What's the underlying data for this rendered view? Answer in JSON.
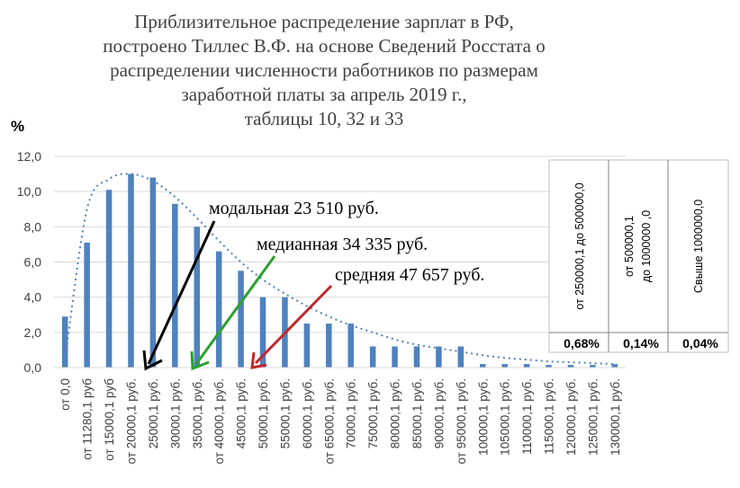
{
  "chart_data": {
    "type": "bar",
    "title": [
      "Приблизительное распределение зарплат в РФ,",
      "построено Тиллес В.Ф. на основе Сведений Росстата о",
      "распределении численности работников по размерам",
      "заработной платы за апрель 2019 г.,",
      "таблицы 10, 32 и 33"
    ],
    "ylabel": "%",
    "ylim": [
      0,
      12
    ],
    "yticks": [
      "0,0",
      "2,0",
      "4,0",
      "6,0",
      "8,0",
      "10,0",
      "12,0"
    ],
    "categories": [
      "от 0,0",
      "от 11280,1 руб",
      "от 15000,1 руб",
      "от 20000,1 руб.",
      "25000,1 руб.",
      "30000,1 руб.",
      "35000,1 руб.",
      "от 40000,1 руб.",
      "45000,1 руб.",
      "50000,1 руб.",
      "55000,1 руб.",
      "60000,1 руб.",
      "от 65000,1 руб.",
      "70000,1 руб.",
      "75000,1 руб.",
      "80000,1 руб.",
      "85000,1 руб.",
      "90000,1 руб.",
      "от 95000,1 руб.",
      "100000,1 руб.",
      "105000,1 руб.",
      "110000,1 руб.",
      "115000,1 руб.",
      "120000,1 руб.",
      "125000,1 руб.",
      "130000,1 руб."
    ],
    "series": [
      {
        "type": "bar",
        "color": "#4f81bd",
        "values": [
          2.9,
          7.1,
          10.1,
          11.0,
          10.8,
          9.3,
          8.0,
          6.6,
          5.5,
          4.0,
          4.0,
          2.5,
          2.5,
          2.5,
          1.2,
          1.2,
          1.2,
          1.2,
          1.2,
          0.2,
          0.2,
          0.2,
          0.15,
          0.15,
          0.15,
          0.2
        ]
      },
      {
        "type": "line",
        "style": "dotted",
        "color": "#4f81bd",
        "values": [
          0.4,
          9.0,
          10.7,
          11.0,
          10.6,
          9.7,
          8.5,
          7.2,
          6.0,
          5.0,
          4.2,
          3.5,
          2.9,
          2.4,
          2.0,
          1.6,
          1.3,
          1.1,
          0.9,
          0.7,
          0.55,
          0.45,
          0.35,
          0.3,
          0.25,
          0.2
        ]
      }
    ],
    "annotations": [
      {
        "text": "модальная 23 510 руб.",
        "color": "#000000"
      },
      {
        "text": "медианная 34 335 руб.",
        "color": "#2ca02c"
      },
      {
        "text": "средняя 47 657 руб.",
        "color": "#c0272d"
      }
    ],
    "table": {
      "headers": [
        "от 250000,1 до 500000,0",
        "от 500000,1 до 1000000 ,0",
        "Свыше 1000000,0"
      ],
      "values": [
        "0,68%",
        "0,14%",
        "0,04%"
      ]
    }
  }
}
